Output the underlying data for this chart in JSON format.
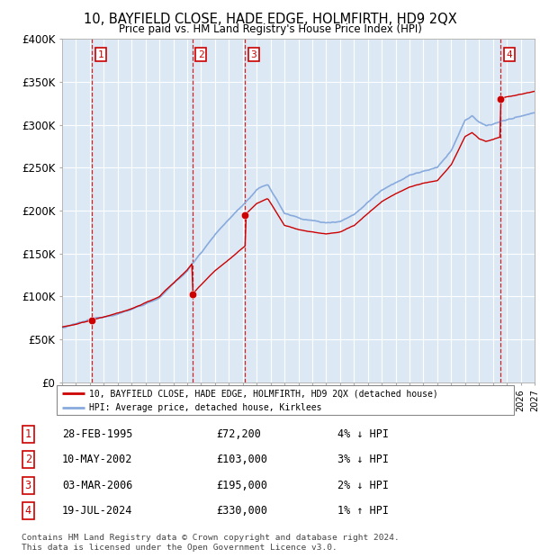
{
  "title": "10, BAYFIELD CLOSE, HADE EDGE, HOLMFIRTH, HD9 2QX",
  "subtitle": "Price paid vs. HM Land Registry's House Price Index (HPI)",
  "legend_line1": "10, BAYFIELD CLOSE, HADE EDGE, HOLMFIRTH, HD9 2QX (detached house)",
  "legend_line2": "HPI: Average price, detached house, Kirklees",
  "footer": "Contains HM Land Registry data © Crown copyright and database right 2024.\nThis data is licensed under the Open Government Licence v3.0.",
  "sales": [
    {
      "num": 1,
      "date": "28-FEB-1995",
      "price": 72200,
      "year": 1995.16,
      "hpi_note": "4% ↓ HPI"
    },
    {
      "num": 2,
      "date": "10-MAY-2002",
      "price": 103000,
      "year": 2002.36,
      "hpi_note": "3% ↓ HPI"
    },
    {
      "num": 3,
      "date": "03-MAR-2006",
      "price": 195000,
      "year": 2006.17,
      "hpi_note": "2% ↓ HPI"
    },
    {
      "num": 4,
      "date": "19-JUL-2024",
      "price": 330000,
      "year": 2024.55,
      "hpi_note": "1% ↑ HPI"
    }
  ],
  "xmin": 1993,
  "xmax": 2027,
  "ymin": 0,
  "ymax": 400000,
  "yticks": [
    0,
    50000,
    100000,
    150000,
    200000,
    250000,
    300000,
    350000,
    400000
  ],
  "ytick_labels": [
    "£0",
    "£50K",
    "£100K",
    "£150K",
    "£200K",
    "£250K",
    "£300K",
    "£350K",
    "£400K"
  ],
  "bg_color": "#dce9f5",
  "sale_dot_color": "#cc0000",
  "hpi_line_color": "#88aadd",
  "price_line_color": "#cc0000",
  "vline_color": "#cc0000",
  "box_edge_color": "#cc0000",
  "box_label_color": "#cc0000",
  "grid_color": "#ffffff"
}
